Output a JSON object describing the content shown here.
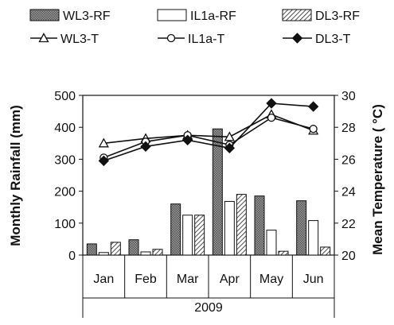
{
  "chart_data": {
    "type": "bar+line",
    "categories": [
      "Jan",
      "Feb",
      "Mar",
      "Apr",
      "May",
      "Jun"
    ],
    "year_label": "2009",
    "ylabel_left": "Monthly Rainfall (mm)",
    "ylabel_right": "Mean Temperature ( °C)",
    "ylim_left": [
      0,
      500
    ],
    "yticks_left": [
      0,
      100,
      200,
      300,
      400,
      500
    ],
    "ylim_right": [
      20,
      30
    ],
    "yticks_right": [
      20,
      22,
      24,
      26,
      28,
      30
    ],
    "bar_series": [
      {
        "name": "WL3-RF",
        "values": [
          35,
          48,
          160,
          395,
          185,
          170
        ],
        "fill": "#8a8a8a",
        "pattern": "dense"
      },
      {
        "name": "IL1a-RF",
        "values": [
          8,
          10,
          125,
          168,
          78,
          108
        ],
        "fill": "#ffffff",
        "pattern": "none"
      },
      {
        "name": "DL3-RF",
        "values": [
          40,
          18,
          125,
          190,
          12,
          25
        ],
        "fill": "#ffffff",
        "pattern": "hatch"
      }
    ],
    "line_series": [
      {
        "name": "WL3-T",
        "values": [
          27.0,
          27.3,
          27.5,
          27.4,
          28.8,
          27.8
        ],
        "marker": "triangle"
      },
      {
        "name": "IL1a-T",
        "values": [
          26.1,
          27.1,
          27.5,
          26.9,
          28.6,
          27.9
        ],
        "marker": "circle"
      },
      {
        "name": "DL3-T",
        "values": [
          25.9,
          26.8,
          27.2,
          26.7,
          29.5,
          29.3
        ],
        "marker": "diamond"
      }
    ],
    "legend_position": "top",
    "grid": false
  }
}
